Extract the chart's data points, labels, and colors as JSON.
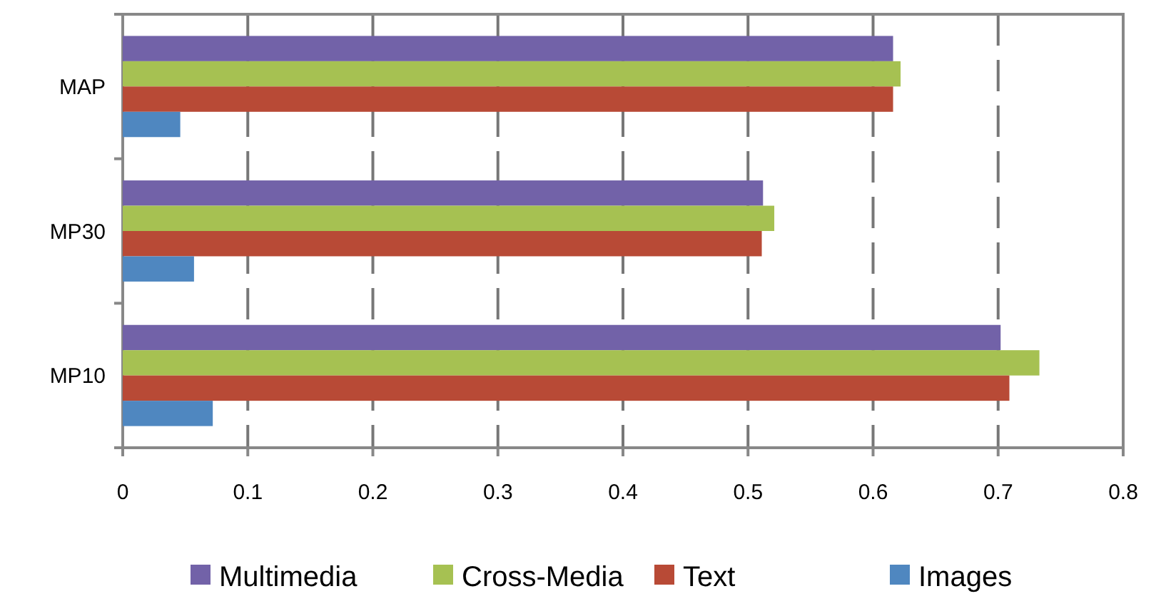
{
  "chart_data": {
    "type": "bar",
    "orientation": "horizontal",
    "categories": [
      "MAP",
      "MP30",
      "MP10"
    ],
    "series": [
      {
        "name": "Multimedia",
        "color": "#7262a8",
        "values": [
          0.616,
          0.512,
          0.702
        ]
      },
      {
        "name": "Cross-Media",
        "color": "#a6c152",
        "values": [
          0.622,
          0.521,
          0.733
        ]
      },
      {
        "name": "Text",
        "color": "#b84a36",
        "values": [
          0.616,
          0.511,
          0.709
        ]
      },
      {
        "name": "Images",
        "color": "#4f87c0",
        "values": [
          0.046,
          0.057,
          0.072
        ]
      }
    ],
    "xlim": [
      0,
      0.8
    ],
    "xticks": [
      0,
      0.1,
      0.2,
      0.3,
      0.4,
      0.5,
      0.6,
      0.7,
      0.8
    ],
    "grid": "x",
    "legend": "bottom"
  }
}
